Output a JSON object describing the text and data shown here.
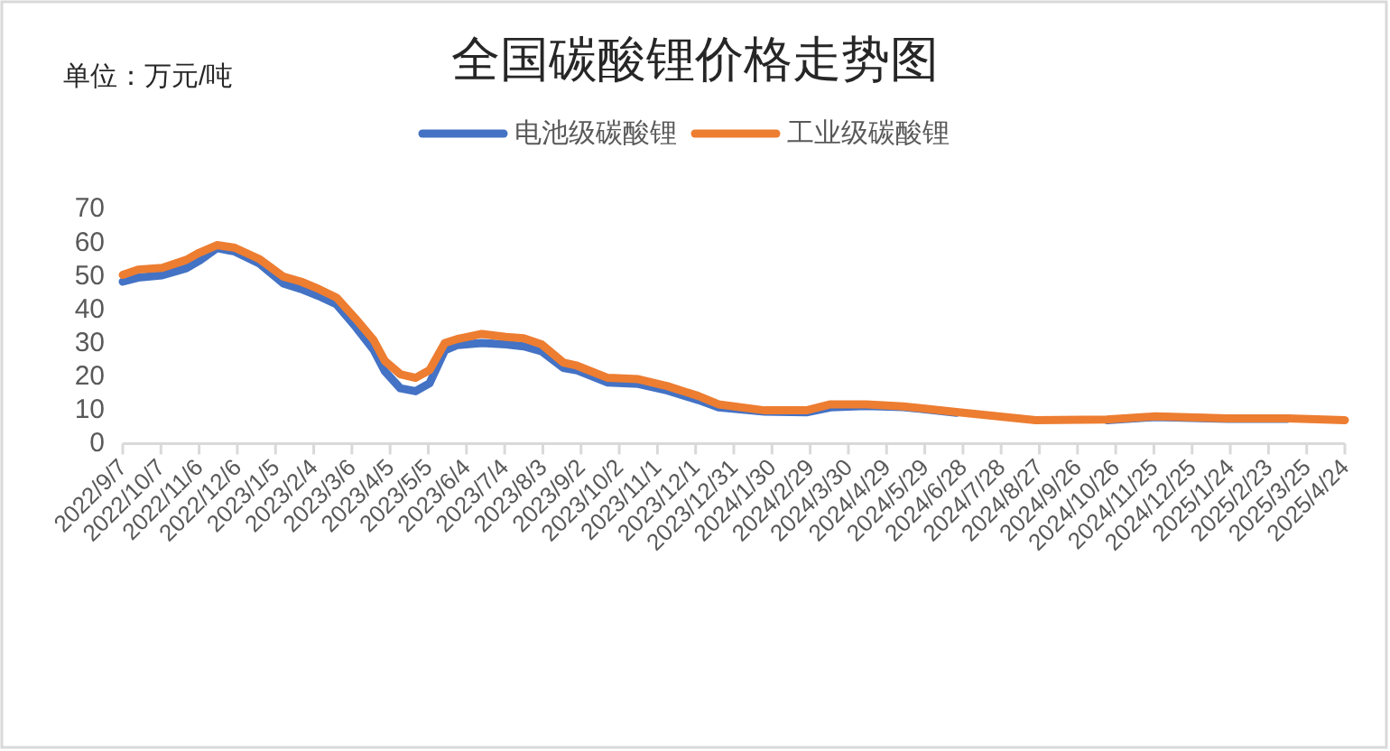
{
  "chart_data": {
    "type": "line",
    "title": "全国碳酸锂价格走势图",
    "annotations": [
      "单位：万元/吨"
    ],
    "x": [
      "2022-09-07",
      "2022-09-19",
      "2022-10-08",
      "2022-10-27",
      "2022-11-06",
      "2022-11-20",
      "2022-12-04",
      "2022-12-23",
      "2023-01-11",
      "2023-01-25",
      "2023-02-08",
      "2023-02-22",
      "2023-03-09",
      "2023-03-23",
      "2023-04-01",
      "2023-04-13",
      "2023-04-25",
      "2023-05-06",
      "2023-05-18",
      "2023-05-28",
      "2023-06-16",
      "2023-07-05",
      "2023-07-19",
      "2023-08-02",
      "2023-08-19",
      "2023-08-30",
      "2023-09-23",
      "2023-10-17",
      "2023-11-09",
      "2023-12-03",
      "2023-12-19",
      "2024-01-24",
      "2024-02-26",
      "2024-03-16",
      "2024-04-13",
      "2024-05-12",
      "2024-06-23",
      "2024-08-24",
      "2024-10-19",
      "2024-11-26",
      "2025-01-22",
      "2025-03-10",
      "2025-04-24"
    ],
    "series": [
      {
        "name": "电池级碳酸锂",
        "color": "#4472c4",
        "values": [
          48.3,
          49.5,
          50.2,
          52.3,
          54.5,
          58.3,
          57.3,
          53.8,
          47.8,
          46.1,
          44.0,
          41.5,
          34.8,
          28.0,
          21.5,
          16.5,
          15.6,
          18.0,
          27.8,
          29.4,
          30.0,
          29.6,
          29.0,
          27.5,
          22.6,
          21.8,
          18.2,
          17.8,
          15.8,
          13.0,
          10.8,
          9.5,
          9.3,
          10.8,
          11.2,
          10.9,
          9.2,
          null,
          7.0,
          7.9,
          7.4,
          7.4,
          null
        ]
      },
      {
        "name": "工业级碳酸锂",
        "color": "#ed7d31",
        "values": [
          50.3,
          51.9,
          52.4,
          54.8,
          56.9,
          59.2,
          58.4,
          55.1,
          49.8,
          48.3,
          46.1,
          43.5,
          37.2,
          30.9,
          24.6,
          20.7,
          19.6,
          21.9,
          30.0,
          31.2,
          32.7,
          31.8,
          31.4,
          29.6,
          24.2,
          23.2,
          19.6,
          19.2,
          17.1,
          14.2,
          11.7,
          9.9,
          9.9,
          11.7,
          11.7,
          11.1,
          9.4,
          7.0,
          7.2,
          8.1,
          7.5,
          7.5,
          7.0
        ]
      }
    ],
    "xlim": [
      "2022-09-07",
      "2025-04-24"
    ],
    "xticks": [
      {
        "value": "2022-09-07",
        "label": "2022/9/7"
      },
      {
        "value": "2022-10-07",
        "label": "2022/10/7"
      },
      {
        "value": "2022-11-06",
        "label": "2022/11/6"
      },
      {
        "value": "2022-12-06",
        "label": "2022/12/6"
      },
      {
        "value": "2023-01-05",
        "label": "2023/1/5"
      },
      {
        "value": "2023-02-04",
        "label": "2023/2/4"
      },
      {
        "value": "2023-03-06",
        "label": "2023/3/6"
      },
      {
        "value": "2023-04-05",
        "label": "2023/4/5"
      },
      {
        "value": "2023-05-05",
        "label": "2023/5/5"
      },
      {
        "value": "2023-06-04",
        "label": "2023/6/4"
      },
      {
        "value": "2023-07-04",
        "label": "2023/7/4"
      },
      {
        "value": "2023-08-03",
        "label": "2023/8/3"
      },
      {
        "value": "2023-09-02",
        "label": "2023/9/2"
      },
      {
        "value": "2023-10-02",
        "label": "2023/10/2"
      },
      {
        "value": "2023-11-01",
        "label": "2023/11/1"
      },
      {
        "value": "2023-12-01",
        "label": "2023/12/1"
      },
      {
        "value": "2023-12-31",
        "label": "2023/12/31"
      },
      {
        "value": "2024-01-30",
        "label": "2024/1/30"
      },
      {
        "value": "2024-02-29",
        "label": "2024/2/29"
      },
      {
        "value": "2024-03-30",
        "label": "2024/3/30"
      },
      {
        "value": "2024-04-29",
        "label": "2024/4/29"
      },
      {
        "value": "2024-05-29",
        "label": "2024/5/29"
      },
      {
        "value": "2024-06-28",
        "label": "2024/6/28"
      },
      {
        "value": "2024-07-28",
        "label": "2024/7/28"
      },
      {
        "value": "2024-08-27",
        "label": "2024/8/27"
      },
      {
        "value": "2024-09-26",
        "label": "2024/9/26"
      },
      {
        "value": "2024-10-26",
        "label": "2024/10/26"
      },
      {
        "value": "2024-11-25",
        "label": "2024/11/25"
      },
      {
        "value": "2024-12-25",
        "label": "2024/12/25"
      },
      {
        "value": "2025-01-24",
        "label": "2025/1/24"
      },
      {
        "value": "2025-02-23",
        "label": "2025/2/23"
      },
      {
        "value": "2025-03-25",
        "label": "2025/3/25"
      },
      {
        "value": "2025-04-24",
        "label": "2025/4/24"
      }
    ],
    "ylim": [
      0,
      70
    ],
    "yticks": [
      0,
      10,
      20,
      30,
      40,
      50,
      60,
      70
    ],
    "grid": false,
    "legend": "top",
    "marker": "none",
    "line_style": "solid"
  }
}
